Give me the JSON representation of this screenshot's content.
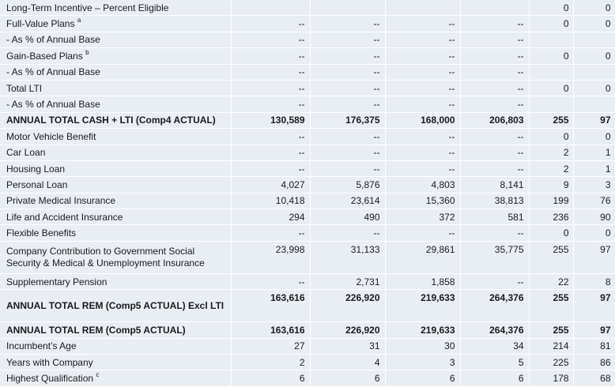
{
  "table": {
    "rows": [
      {
        "label": "Long-Term Incentive – Percent Eligible",
        "sup": "",
        "bold": false,
        "tall": false,
        "cells": [
          "",
          "",
          "",
          "",
          "0",
          "0"
        ]
      },
      {
        "label": "Full-Value Plans",
        "sup": "a",
        "bold": false,
        "tall": false,
        "cells": [
          "--",
          "--",
          "--",
          "--",
          "0",
          "0"
        ]
      },
      {
        "label": "- As % of Annual Base",
        "sup": "",
        "bold": false,
        "tall": false,
        "cells": [
          "--",
          "--",
          "--",
          "--",
          "",
          ""
        ]
      },
      {
        "label": "Gain-Based Plans",
        "sup": "b",
        "bold": false,
        "tall": false,
        "cells": [
          "--",
          "--",
          "--",
          "--",
          "0",
          "0"
        ]
      },
      {
        "label": "- As % of Annual Base",
        "sup": "",
        "bold": false,
        "tall": false,
        "cells": [
          "--",
          "--",
          "--",
          "--",
          "",
          ""
        ]
      },
      {
        "label": "Total LTI",
        "sup": "",
        "bold": false,
        "tall": false,
        "cells": [
          "--",
          "--",
          "--",
          "--",
          "0",
          "0"
        ]
      },
      {
        "label": "- As % of Annual Base",
        "sup": "",
        "bold": false,
        "tall": false,
        "cells": [
          "--",
          "--",
          "--",
          "--",
          "",
          ""
        ]
      },
      {
        "label": "ANNUAL TOTAL CASH + LTI (Comp4 ACTUAL)",
        "sup": "",
        "bold": true,
        "tall": false,
        "cells": [
          "130,589",
          "176,375",
          "168,000",
          "206,803",
          "255",
          "97"
        ]
      },
      {
        "label": "Motor Vehicle Benefit",
        "sup": "",
        "bold": false,
        "tall": false,
        "cells": [
          "--",
          "--",
          "--",
          "--",
          "0",
          "0"
        ]
      },
      {
        "label": "Car Loan",
        "sup": "",
        "bold": false,
        "tall": false,
        "cells": [
          "--",
          "--",
          "--",
          "--",
          "2",
          "1"
        ]
      },
      {
        "label": "Housing Loan",
        "sup": "",
        "bold": false,
        "tall": false,
        "cells": [
          "--",
          "--",
          "--",
          "--",
          "2",
          "1"
        ]
      },
      {
        "label": "Personal Loan",
        "sup": "",
        "bold": false,
        "tall": false,
        "cells": [
          "4,027",
          "5,876",
          "4,803",
          "8,141",
          "9",
          "3"
        ]
      },
      {
        "label": "Private Medical Insurance",
        "sup": "",
        "bold": false,
        "tall": false,
        "cells": [
          "10,418",
          "23,614",
          "15,360",
          "38,813",
          "199",
          "76"
        ]
      },
      {
        "label": "Life and Accident Insurance",
        "sup": "",
        "bold": false,
        "tall": false,
        "cells": [
          "294",
          "490",
          "372",
          "581",
          "236",
          "90"
        ]
      },
      {
        "label": "Flexible Benefits",
        "sup": "",
        "bold": false,
        "tall": false,
        "cells": [
          "--",
          "--",
          "--",
          "--",
          "0",
          "0"
        ]
      },
      {
        "label": "Company Contribution to Government Social Security & Medical & Unemployment Insurance",
        "sup": "",
        "bold": false,
        "tall": true,
        "cells": [
          "23,998",
          "31,133",
          "29,861",
          "35,775",
          "255",
          "97"
        ]
      },
      {
        "label": "Supplementary Pension",
        "sup": "",
        "bold": false,
        "tall": false,
        "cells": [
          "--",
          "2,731",
          "1,858",
          "--",
          "22",
          "8"
        ]
      },
      {
        "label": "ANNUAL TOTAL REM (Comp5 ACTUAL) Excl LTI",
        "sup": "",
        "bold": true,
        "tall": true,
        "cells": [
          "163,616",
          "226,920",
          "219,633",
          "264,376",
          "255",
          "97"
        ]
      },
      {
        "label": "ANNUAL TOTAL REM (Comp5 ACTUAL)",
        "sup": "",
        "bold": true,
        "tall": false,
        "cells": [
          "163,616",
          "226,920",
          "219,633",
          "264,376",
          "255",
          "97"
        ]
      },
      {
        "label": "Incumbent’s Age",
        "sup": "",
        "bold": false,
        "tall": false,
        "cells": [
          "27",
          "31",
          "30",
          "34",
          "214",
          "81"
        ]
      },
      {
        "label": "Years with Company",
        "sup": "",
        "bold": false,
        "tall": false,
        "cells": [
          "2",
          "4",
          "3",
          "5",
          "225",
          "86"
        ]
      },
      {
        "label": "Highest Qualification",
        "sup": "c",
        "bold": false,
        "tall": false,
        "cells": [
          "6",
          "6",
          "6",
          "6",
          "178",
          "68"
        ]
      }
    ]
  }
}
